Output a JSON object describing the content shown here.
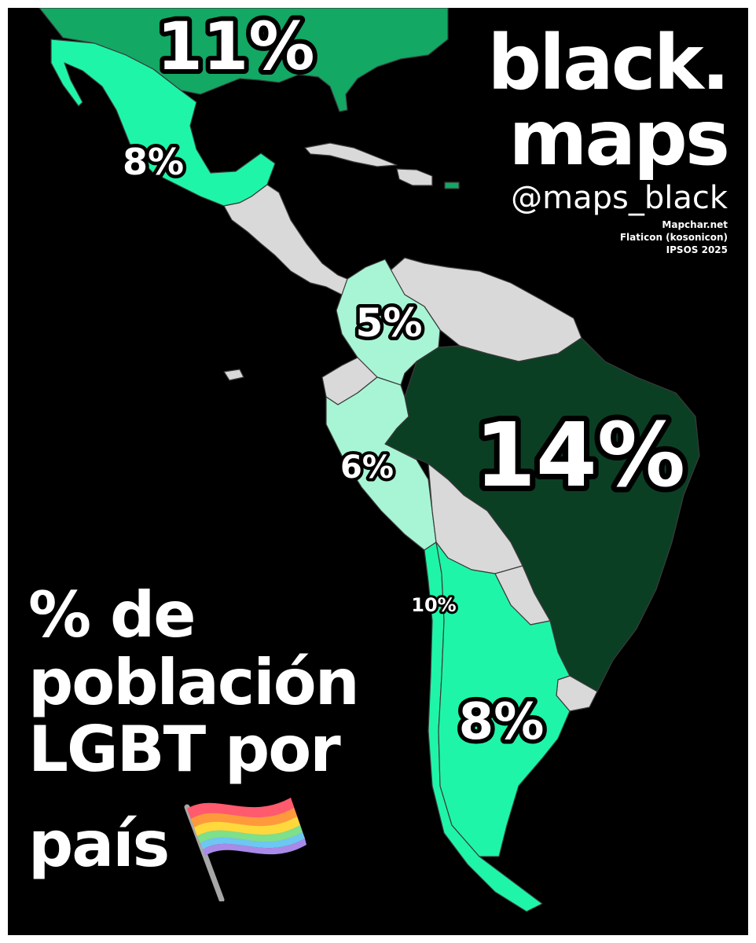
{
  "brand": {
    "line1": "black.",
    "line2": "maps",
    "handle": "@maps_black"
  },
  "sources": [
    "Mapchar.net",
    "Flaticon (kosonicon)",
    "IPSOS 2025"
  ],
  "title": {
    "line1": "% de",
    "line2": "población",
    "line3": "LGBT por",
    "line4": "país",
    "icon": "rainbow-flag-icon"
  },
  "colors": {
    "background": "#000000",
    "no_data": "#d9d9d9",
    "level_5_6": "#a8f5d6",
    "level_8_10": "#1ff5a8",
    "level_11": "#13a864",
    "level_14": "#0b3f24"
  },
  "labels": {
    "usa": "11%",
    "mexico": "8%",
    "colombia": "5%",
    "brazil": "14%",
    "peru": "6%",
    "chile": "10%",
    "argentina": "8%"
  },
  "map_data": {
    "regions": [
      {
        "name": "USA",
        "value": 11
      },
      {
        "name": "Mexico",
        "value": 8
      },
      {
        "name": "Colombia",
        "value": 5
      },
      {
        "name": "Brazil",
        "value": 14
      },
      {
        "name": "Peru",
        "value": 6
      },
      {
        "name": "Chile",
        "value": 10
      },
      {
        "name": "Argentina",
        "value": 8
      }
    ]
  }
}
